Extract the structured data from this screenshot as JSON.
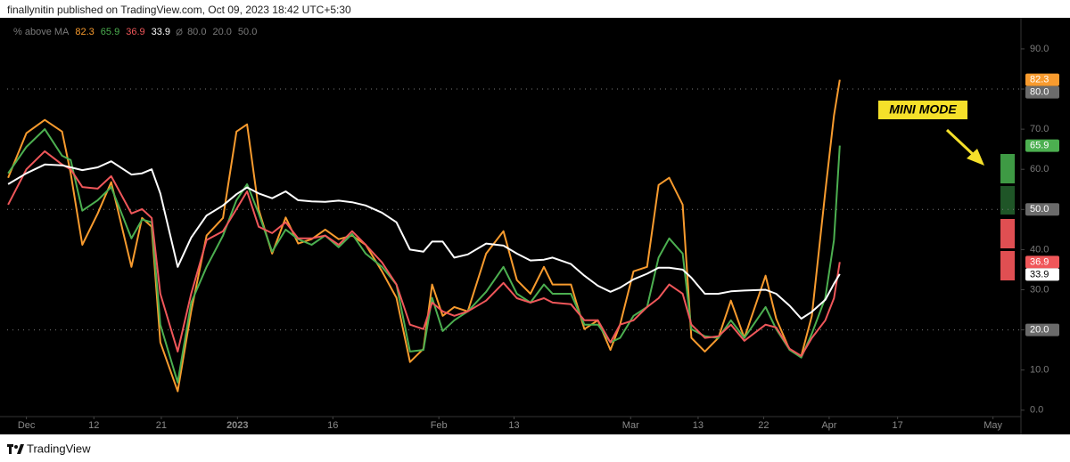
{
  "header": "finallynitin published on TradingView.com, Oct 09, 2023 18:42 UTC+5:30",
  "footer": "TradingView",
  "chart_data": {
    "type": "line",
    "title": "% above MA",
    "annotation": "MINI MODE",
    "x": [
      -1.9,
      0,
      1.9,
      3.7,
      4.6,
      5.8,
      7.4,
      8.8,
      10.9,
      12,
      13,
      13.9,
      15.7,
      17.1,
      18.7,
      20.4,
      21.8,
      22.9,
      24.1,
      25.5,
      26.9,
      28.2,
      29.6,
      31,
      32.4,
      33.8,
      35.2,
      36.9,
      38.4,
      39.8,
      41.2,
      42.1,
      43.2,
      44.4,
      45.8,
      47.7,
      49.5,
      50.9,
      52.3,
      53.7,
      54.6,
      56.5,
      57.9,
      59.3,
      60.6,
      61.6,
      63,
      64.4,
      65.6,
      66.7,
      68.1,
      69,
      70.4,
      71.8,
      73.1,
      74.5,
      76.7,
      77.8,
      79.2,
      80.4,
      81.5,
      82.9,
      83.8,
      84.4
    ],
    "series": [
      {
        "color": "#f89b2e",
        "values": [
          57.9,
          69,
          72.3,
          69.4,
          59,
          41.2,
          49,
          56.8,
          35.7,
          47.9,
          45.7,
          16.9,
          4.7,
          24.6,
          43.5,
          47.9,
          69.4,
          71.2,
          50,
          39,
          48,
          41.5,
          42.6,
          45,
          42.6,
          43.5,
          41.2,
          34.6,
          28,
          12,
          15.3,
          31.3,
          23.5,
          25.7,
          24.6,
          39,
          44.6,
          32.4,
          29,
          35.7,
          31.3,
          31.3,
          20.2,
          22.4,
          15,
          21.3,
          34.6,
          35.7,
          56.1,
          57.9,
          51.2,
          18,
          14.6,
          18,
          27.3,
          18,
          33.5,
          22.8,
          15,
          13.5,
          23.5,
          54.5,
          73.4,
          82.3
        ]
      },
      {
        "color": "#4caf50",
        "values": [
          59,
          65.6,
          70,
          63.4,
          62.3,
          49.7,
          52.3,
          55.6,
          42.8,
          47.5,
          46.8,
          21.3,
          6.9,
          26.8,
          35.7,
          43.5,
          52.3,
          56.3,
          49,
          39.5,
          45,
          42.6,
          41.2,
          43.5,
          40.6,
          43.9,
          39,
          35.7,
          31.3,
          14.6,
          15,
          28,
          19.7,
          22.4,
          24.6,
          29.5,
          35.7,
          29,
          26.8,
          31.3,
          29,
          29,
          21.3,
          21.3,
          16.9,
          18,
          23.5,
          25.7,
          38,
          42.8,
          39,
          20.2,
          18.4,
          18,
          22.4,
          18,
          25.7,
          20.2,
          15,
          13.1,
          19.1,
          28,
          42.4,
          65.9
        ]
      },
      {
        "color": "#f0575a",
        "values": [
          51.2,
          60,
          64.5,
          61.2,
          60,
          55.6,
          55.2,
          58.3,
          49,
          50.1,
          47.9,
          29,
          14.6,
          29,
          42.4,
          44.6,
          50.1,
          54.5,
          45.7,
          44.1,
          46.8,
          42.8,
          42.8,
          43.5,
          41.2,
          44.6,
          41.2,
          36.8,
          31.3,
          21.3,
          20.2,
          26.8,
          24.6,
          23.5,
          24.6,
          27.3,
          31.7,
          27.9,
          26.8,
          27.9,
          26.8,
          26.4,
          22.4,
          22.4,
          16.9,
          21.3,
          22.4,
          25.7,
          27.9,
          31.3,
          29,
          21.3,
          18,
          18.4,
          21.3,
          17.3,
          21.3,
          20.6,
          15.3,
          13.5,
          18,
          22.4,
          27.9,
          36.9
        ]
      },
      {
        "color": "#ffffff",
        "values": [
          56.3,
          59,
          61.2,
          61,
          60.5,
          59.8,
          60.5,
          62,
          58.7,
          59,
          60,
          54,
          35.7,
          43,
          48.5,
          51,
          53.8,
          55.5,
          54,
          52.8,
          54.5,
          52.3,
          52,
          51.9,
          52.2,
          51.8,
          51,
          49.2,
          46.8,
          40,
          39.5,
          42,
          42,
          38,
          38.8,
          41.5,
          41,
          39,
          37.3,
          37.5,
          38,
          36.4,
          33.5,
          31,
          29.5,
          30.5,
          32.6,
          34,
          35.5,
          35.5,
          35,
          33,
          29,
          29,
          29.6,
          29.8,
          30,
          29,
          26,
          22.8,
          24.5,
          27.5,
          31.5,
          33.9
        ]
      }
    ],
    "levels": [
      {
        "value": 80,
        "label": "80.0"
      },
      {
        "value": 20,
        "label": "20.0"
      },
      {
        "value": 50,
        "label": "50.0"
      }
    ],
    "xlim": [
      -2,
      103.2
    ],
    "ylim": [
      -1.6,
      97.3
    ],
    "xticks": [
      {
        "value": 0,
        "label": "Dec"
      },
      {
        "value": 7,
        "label": "12"
      },
      {
        "value": 14,
        "label": "21"
      },
      {
        "value": 21.9,
        "label": "2023"
      },
      {
        "value": 31.8,
        "label": "16"
      },
      {
        "value": 42.8,
        "label": "Feb"
      },
      {
        "value": 50.6,
        "label": "13"
      },
      {
        "value": 62.7,
        "label": "Mar"
      },
      {
        "value": 69.7,
        "label": "13"
      },
      {
        "value": 76.5,
        "label": "22"
      },
      {
        "value": 83.3,
        "label": "Apr"
      },
      {
        "value": 90.4,
        "label": "17"
      },
      {
        "value": 100.3,
        "label": "May"
      }
    ],
    "yticks": [
      {
        "value": 0,
        "label": "0.0"
      },
      {
        "value": 10,
        "label": "10.0"
      },
      {
        "value": 20,
        "label": "20.0"
      },
      {
        "value": 30,
        "label": "30.0"
      },
      {
        "value": 40,
        "label": "40.0"
      },
      {
        "value": 50,
        "label": "50.0"
      },
      {
        "value": 60,
        "label": "60.0"
      },
      {
        "value": 70,
        "label": "70.0"
      },
      {
        "value": 80,
        "label": "80.0"
      },
      {
        "value": 90,
        "label": "90.0"
      }
    ]
  }
}
